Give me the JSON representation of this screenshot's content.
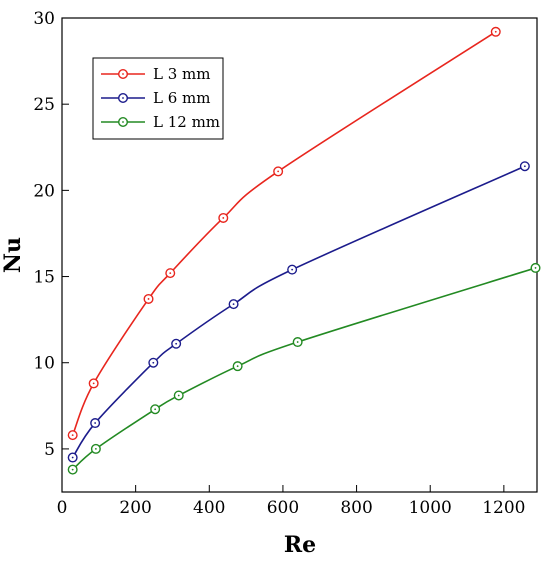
{
  "chart_data": {
    "type": "line",
    "title": "",
    "xlabel": "Re",
    "ylabel": "Nu",
    "xlim": [
      0,
      1290
    ],
    "ylim": [
      2.5,
      30
    ],
    "x_ticks": [
      0,
      200,
      400,
      600,
      800,
      1000,
      1200
    ],
    "y_ticks": [
      5,
      10,
      15,
      20,
      25,
      30
    ],
    "grid": false,
    "legend_position": "top-left",
    "series": [
      {
        "name": "L 3 mm",
        "color": "#e8261e",
        "marker": "open-circle",
        "points": [
          [
            29,
            5.8
          ],
          [
            86,
            8.8
          ],
          [
            235,
            13.7
          ],
          [
            294,
            15.2
          ],
          [
            438,
            18.4
          ],
          [
            587,
            21.1
          ],
          [
            1178,
            29.2
          ]
        ]
      },
      {
        "name": "L 6 mm",
        "color": "#1c1c8c",
        "marker": "open-circle",
        "points": [
          [
            29,
            4.5
          ],
          [
            90,
            6.5
          ],
          [
            248,
            10.0
          ],
          [
            310,
            11.1
          ],
          [
            466,
            13.4
          ],
          [
            625,
            15.4
          ],
          [
            1257,
            21.4
          ]
        ]
      },
      {
        "name": "L 12 mm",
        "color": "#238a23",
        "marker": "open-circle",
        "points": [
          [
            29,
            3.8
          ],
          [
            92,
            5.0
          ],
          [
            253,
            7.3
          ],
          [
            317,
            8.1
          ],
          [
            477,
            9.8
          ],
          [
            640,
            11.2
          ],
          [
            1286,
            15.5
          ]
        ]
      }
    ]
  }
}
